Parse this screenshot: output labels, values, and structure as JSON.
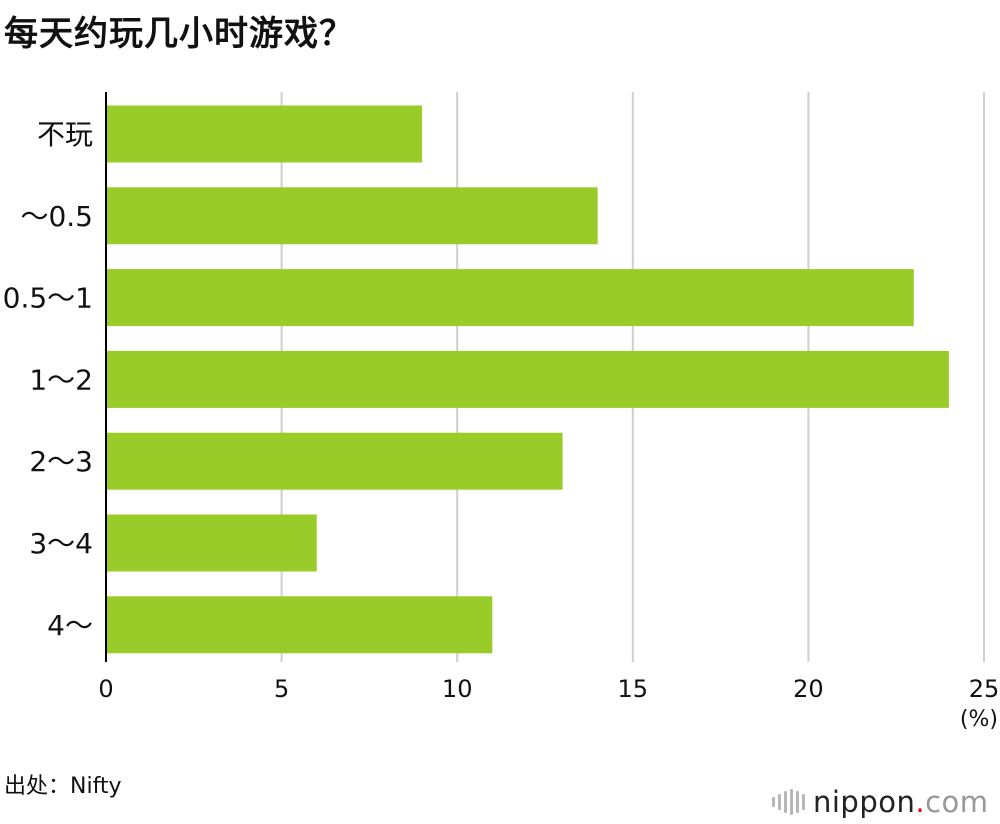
{
  "title": "每天约玩几小时游戏？",
  "source": "出处：Nifty",
  "logo": {
    "name": "nippon",
    "dot": ".",
    "tld": "com"
  },
  "colors": {
    "bar": "#99cc29",
    "grid": "#cfcfcf",
    "axis": "#000000",
    "text": "#111111"
  },
  "chart_data": {
    "type": "bar",
    "orientation": "horizontal",
    "categories": [
      "不玩",
      "～0.5",
      "0.5～1",
      "1～2",
      "2～3",
      "3～4",
      "4～"
    ],
    "values": [
      9,
      14,
      23,
      24,
      13,
      6,
      11
    ],
    "xlim": [
      0,
      25
    ],
    "xticks": [
      0,
      5,
      10,
      15,
      20,
      25
    ],
    "xunit": "(%)",
    "grid": "vertical"
  }
}
